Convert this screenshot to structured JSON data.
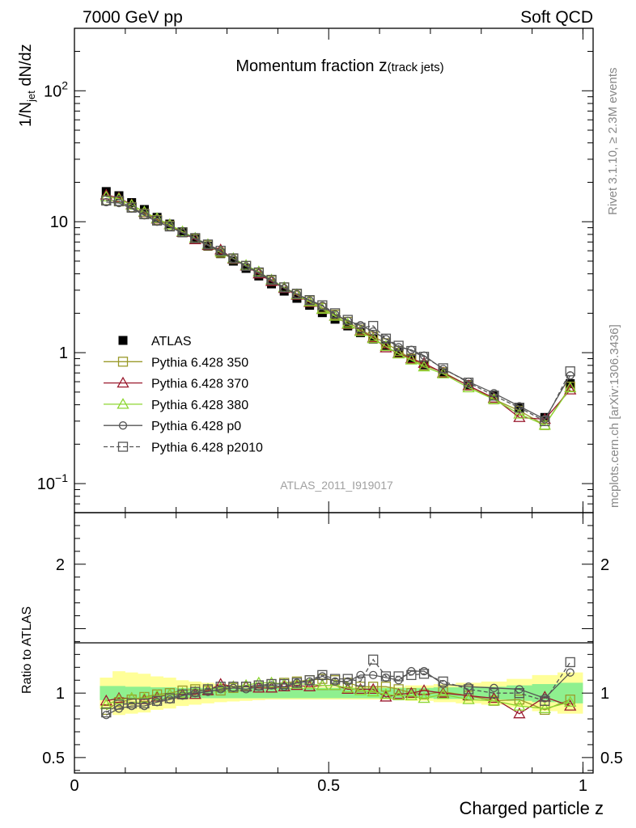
{
  "header": {
    "left_label": "7000 GeV pp",
    "right_label": "Soft QCD"
  },
  "side_labels": {
    "upper": "Rivet 3.1.10, ≥ 2.3M events",
    "lower": "mcplots.cern.ch [arXiv:1306.3436]"
  },
  "chart_data": [
    {
      "type": "line",
      "title_main": "Momentum fraction ",
      "title_var": "z",
      "title_sub": "(track jets)",
      "watermark": "ATLAS_2011_I919017",
      "ylabel_main": "1/N",
      "ylabel_sub": "jet",
      "ylabel_rest": " dN/dz",
      "yscale": "log",
      "ylim": [
        0.06,
        300
      ],
      "xlim": [
        0,
        1.02
      ],
      "yticks": [
        {
          "value": 100,
          "base": "10",
          "exp": "2"
        },
        {
          "value": 10,
          "base": "10",
          "exp": ""
        },
        {
          "value": 1,
          "base": "1",
          "exp": ""
        },
        {
          "value": 0.1,
          "base": "10",
          "exp": "−1"
        }
      ],
      "legend_position": "bottom-left",
      "x": [
        0.0625,
        0.0875,
        0.1125,
        0.1375,
        0.1625,
        0.1875,
        0.2125,
        0.2375,
        0.2625,
        0.2875,
        0.3125,
        0.3375,
        0.3625,
        0.3875,
        0.4125,
        0.4375,
        0.4625,
        0.4875,
        0.5125,
        0.5375,
        0.5625,
        0.5875,
        0.6125,
        0.6375,
        0.6625,
        0.6875,
        0.725,
        0.775,
        0.825,
        0.875,
        0.925,
        0.975
      ],
      "series": [
        {
          "name": "ATLAS",
          "color": "#000000",
          "marker": "filled-square",
          "dashed": false,
          "values": [
            17,
            15.8,
            14,
            12.4,
            10.8,
            9.6,
            8.4,
            7.4,
            6.5,
            5.7,
            5.0,
            4.4,
            3.85,
            3.35,
            2.95,
            2.6,
            2.3,
            2.02,
            1.8,
            1.6,
            1.42,
            1.27,
            1.13,
            1.0,
            0.9,
            0.81,
            0.7,
            0.57,
            0.47,
            0.38,
            0.32,
            0.58
          ]
        },
        {
          "name": "Pythia 6.428 350",
          "color": "#9a9a2a",
          "marker": "open-square",
          "dashed": false,
          "values": [
            14.6,
            14.3,
            12.9,
            11.5,
            10.3,
            9.3,
            8.3,
            7.4,
            6.6,
            5.8,
            5.2,
            4.6,
            4.05,
            3.55,
            3.15,
            2.8,
            2.5,
            2.2,
            1.95,
            1.72,
            1.5,
            1.33,
            1.18,
            1.03,
            0.9,
            0.8,
            0.71,
            0.56,
            0.44,
            0.36,
            0.28,
            0.55
          ]
        },
        {
          "name": "Pythia 6.428 370",
          "color": "#9a1a2e",
          "marker": "open-triangle",
          "dashed": false,
          "values": [
            16,
            15.2,
            13.5,
            11.8,
            10.5,
            9.5,
            8.3,
            7.3,
            6.6,
            6.1,
            5.2,
            4.6,
            4.0,
            3.5,
            3.1,
            2.75,
            2.42,
            2.14,
            1.9,
            1.65,
            1.47,
            1.3,
            1.09,
            0.99,
            0.9,
            0.83,
            0.7,
            0.56,
            0.45,
            0.32,
            0.31,
            0.52
          ]
        },
        {
          "name": "Pythia 6.428 380",
          "color": "#8ed632",
          "marker": "open-triangle",
          "dashed": false,
          "values": [
            15.5,
            15.0,
            13.4,
            11.9,
            10.6,
            9.5,
            8.4,
            7.5,
            6.7,
            5.9,
            5.25,
            4.65,
            4.15,
            3.6,
            3.15,
            2.78,
            2.45,
            2.15,
            1.9,
            1.66,
            1.45,
            1.28,
            1.12,
            0.98,
            0.88,
            0.78,
            0.69,
            0.54,
            0.44,
            0.34,
            0.28,
            0.54
          ]
        },
        {
          "name": "Pythia 6.428 p0",
          "color": "#555555",
          "marker": "open-circle",
          "dashed": false,
          "values": [
            14.1,
            13.9,
            12.6,
            11.2,
            10.0,
            9.1,
            8.2,
            7.4,
            6.6,
            5.9,
            5.2,
            4.55,
            4.05,
            3.55,
            3.1,
            2.8,
            2.5,
            2.28,
            1.96,
            1.75,
            1.62,
            1.45,
            1.27,
            1.1,
            1.05,
            0.95,
            0.75,
            0.6,
            0.49,
            0.39,
            0.31,
            0.67
          ]
        },
        {
          "name": "Pythia 6.428 p2010",
          "color": "#555555",
          "marker": "open-square",
          "dashed": true,
          "values": [
            14.5,
            14.4,
            12.8,
            11.4,
            10.2,
            9.2,
            8.3,
            7.5,
            6.7,
            6.0,
            5.25,
            4.6,
            4.1,
            3.6,
            3.15,
            2.82,
            2.52,
            2.3,
            2.0,
            1.78,
            1.55,
            1.6,
            1.28,
            1.13,
            1.03,
            0.93,
            0.76,
            0.59,
            0.47,
            0.38,
            0.3,
            0.72
          ]
        }
      ]
    },
    {
      "type": "line",
      "ylabel": "Ratio to ATLAS",
      "xlabel": "Charged particle z",
      "ylim": [
        0.38,
        2.4
      ],
      "xlim": [
        0,
        1.02
      ],
      "yticks": [
        {
          "value": 2,
          "label": "2"
        },
        {
          "value": 1,
          "label": "1"
        },
        {
          "value": 0.5,
          "label": "0.5"
        }
      ],
      "xticks": [
        {
          "value": 0,
          "label": "0"
        },
        {
          "value": 0.5,
          "label": "0.5"
        },
        {
          "value": 1,
          "label": "1"
        }
      ],
      "band_colors": {
        "inner": "#8ff08f",
        "outer": "#ffff99"
      },
      "band_inner": [
        0.055,
        0.055,
        0.05,
        0.05,
        0.045,
        0.045,
        0.04,
        0.04,
        0.04,
        0.04,
        0.04,
        0.04,
        0.04,
        0.04,
        0.04,
        0.04,
        0.04,
        0.04,
        0.04,
        0.04,
        0.04,
        0.04,
        0.04,
        0.04,
        0.04,
        0.04,
        0.045,
        0.045,
        0.05,
        0.06,
        0.07,
        0.08
      ],
      "band_outer": [
        0.12,
        0.17,
        0.16,
        0.15,
        0.13,
        0.12,
        0.1,
        0.09,
        0.08,
        0.07,
        0.065,
        0.06,
        0.055,
        0.05,
        0.05,
        0.05,
        0.05,
        0.05,
        0.05,
        0.05,
        0.05,
        0.05,
        0.05,
        0.05,
        0.06,
        0.06,
        0.07,
        0.08,
        0.09,
        0.11,
        0.14,
        0.16
      ],
      "series": [
        {
          "name": "Pythia 6.428 350",
          "color": "#9a9a2a",
          "marker": "open-square",
          "dashed": false,
          "values": [
            0.87,
            0.93,
            0.95,
            0.97,
            0.99,
            1.0,
            1.02,
            1.03,
            1.02,
            1.02,
            1.04,
            1.05,
            1.06,
            1.07,
            1.08,
            1.09,
            1.1,
            1.11,
            1.1,
            1.08,
            1.05,
            1.05,
            1.05,
            1.03,
            1.0,
            0.99,
            1.01,
            0.98,
            0.94,
            0.95,
            0.87,
            0.95
          ]
        },
        {
          "name": "Pythia 6.428 370",
          "color": "#9a1a2e",
          "marker": "open-triangle",
          "dashed": false,
          "values": [
            0.94,
            0.96,
            0.96,
            0.95,
            0.97,
            0.99,
            0.99,
            0.99,
            1.02,
            1.07,
            1.05,
            1.05,
            1.04,
            1.04,
            1.05,
            1.06,
            1.05,
            1.06,
            1.06,
            1.03,
            1.03,
            1.03,
            0.97,
            0.99,
            1.0,
            1.02,
            1.0,
            0.98,
            0.96,
            0.84,
            0.97,
            0.9
          ]
        },
        {
          "name": "Pythia 6.428 380",
          "color": "#8ed632",
          "marker": "open-triangle",
          "dashed": false,
          "values": [
            0.91,
            0.95,
            0.96,
            0.96,
            0.98,
            0.99,
            1.0,
            1.01,
            1.03,
            1.04,
            1.05,
            1.06,
            1.08,
            1.08,
            1.07,
            1.07,
            1.07,
            1.06,
            1.06,
            1.04,
            1.02,
            1.01,
            0.99,
            0.98,
            0.98,
            0.96,
            0.99,
            0.95,
            0.94,
            0.9,
            0.88,
            0.93
          ]
        },
        {
          "name": "Pythia 6.428 p0",
          "color": "#555555",
          "marker": "open-circle",
          "dashed": false,
          "values": [
            0.83,
            0.88,
            0.9,
            0.9,
            0.93,
            0.95,
            0.98,
            1.0,
            1.01,
            1.03,
            1.04,
            1.03,
            1.05,
            1.06,
            1.05,
            1.08,
            1.09,
            1.13,
            1.09,
            1.09,
            1.14,
            1.14,
            1.12,
            1.1,
            1.17,
            1.17,
            1.07,
            1.05,
            1.04,
            1.03,
            0.96,
            1.16
          ]
        },
        {
          "name": "Pythia 6.428 p2010",
          "color": "#555555",
          "marker": "open-square",
          "dashed": true,
          "values": [
            0.85,
            0.91,
            0.92,
            0.92,
            0.94,
            0.96,
            0.99,
            1.01,
            1.03,
            1.05,
            1.05,
            1.05,
            1.06,
            1.07,
            1.07,
            1.08,
            1.1,
            1.14,
            1.11,
            1.11,
            1.09,
            1.26,
            1.13,
            1.13,
            1.14,
            1.15,
            1.09,
            1.03,
            1.0,
            1.0,
            0.94,
            1.24
          ]
        }
      ]
    }
  ]
}
